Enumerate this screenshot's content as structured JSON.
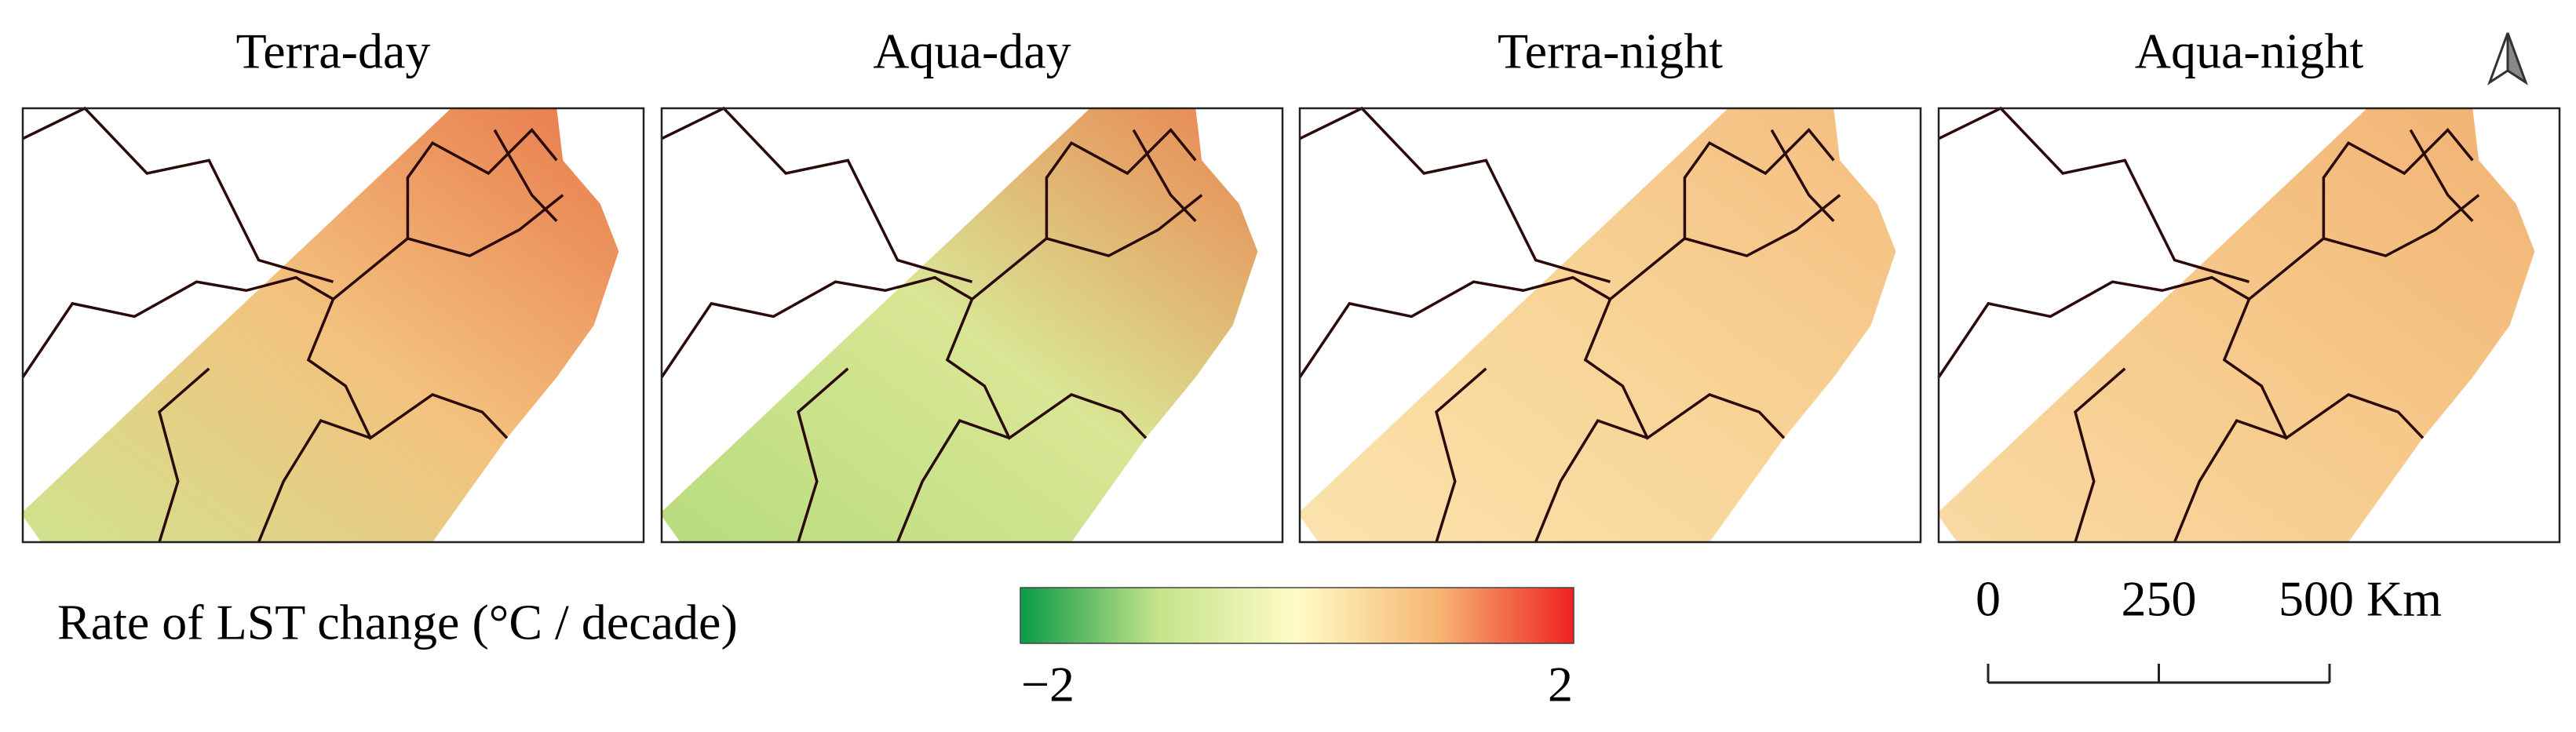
{
  "panels": [
    {
      "title": "Terra-day",
      "colors": [
        "#e8794a",
        "#f3c27e",
        "#cfe38f"
      ]
    },
    {
      "title": "Aqua-day",
      "colors": [
        "#e98450",
        "#d9e695",
        "#b7dc7e"
      ]
    },
    {
      "title": "Terra-night",
      "colors": [
        "#f4bd7f",
        "#f8d497",
        "#fbe3ad"
      ]
    },
    {
      "title": "Aqua-night",
      "colors": [
        "#f1b273",
        "#f6c98a",
        "#f9daa3"
      ]
    }
  ],
  "legend": {
    "label": "Rate of LST change (°C / decade)",
    "lim": [
      -2,
      2
    ],
    "ticks": [
      {
        "value": -2,
        "label": "−2"
      },
      2
    ],
    "colors": [
      "#0b9b45",
      "#c4e48b",
      "#fffbc6",
      "#f6b874",
      "#ef2222"
    ]
  },
  "scale_bar": {
    "lim": [
      0,
      500
    ],
    "ticks": [
      0,
      250,
      {
        "value": 500,
        "label": "500 Km"
      }
    ]
  }
}
